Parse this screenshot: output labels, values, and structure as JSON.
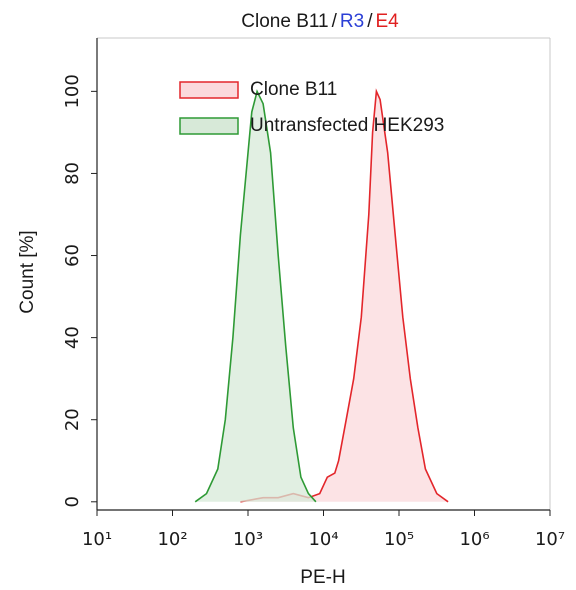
{
  "chart_data": {
    "type": "histogram-overlay",
    "title_parts": [
      {
        "text": "Clone B11",
        "color": "#1a1a1a"
      },
      {
        "text": "/",
        "color": "#1a1a1a"
      },
      {
        "text": "R3",
        "color": "#2b3fd6"
      },
      {
        "text": "/",
        "color": "#1a1a1a"
      },
      {
        "text": "E4",
        "color": "#e02020"
      }
    ],
    "x_label": "PE-H",
    "y_label": "Count [%]",
    "xscale": "log",
    "xlim": [
      10,
      10000000
    ],
    "xticks": [
      {
        "value": 10,
        "label": "10¹"
      },
      {
        "value": 100,
        "label": "10²"
      },
      {
        "value": 1000,
        "label": "10³"
      },
      {
        "value": 10000,
        "label": "10⁴"
      },
      {
        "value": 100000,
        "label": "10⁵"
      },
      {
        "value": 1000000,
        "label": "10⁶"
      },
      {
        "value": 10000000,
        "label": "10⁷"
      }
    ],
    "ylim": [
      -2,
      113
    ],
    "yticks": [
      0,
      20,
      40,
      60,
      80,
      100
    ],
    "legend": "upper left",
    "series": [
      {
        "name": "Clone B11",
        "color": "#e3262b",
        "fill": "#fbd9dc",
        "x": [
          794,
          1585,
          2512,
          3981,
          6310,
          8913,
          11220,
          14125,
          15849,
          19953,
          25119,
          31623,
          39811,
          44668,
          50119,
          56234,
          70795,
          89125,
          112202,
          141254,
          177828,
          223872,
          316228,
          446684
        ],
        "values": [
          0,
          1,
          1,
          2,
          1,
          2,
          6,
          7,
          10,
          20,
          30,
          45,
          70,
          90,
          100,
          98,
          85,
          65,
          45,
          30,
          18,
          8,
          2,
          0
        ]
      },
      {
        "name": "Untransfected HEK293",
        "color": "#2e9a35",
        "fill": "#d7e9d8",
        "x": [
          200,
          282,
          398,
          501,
          631,
          794,
          1000,
          1122,
          1318,
          1585,
          1995,
          2512,
          3162,
          3981,
          5012,
          6310,
          7943
        ],
        "values": [
          0,
          2,
          8,
          20,
          40,
          65,
          85,
          95,
          100,
          97,
          85,
          60,
          38,
          18,
          6,
          2,
          0
        ]
      }
    ]
  }
}
